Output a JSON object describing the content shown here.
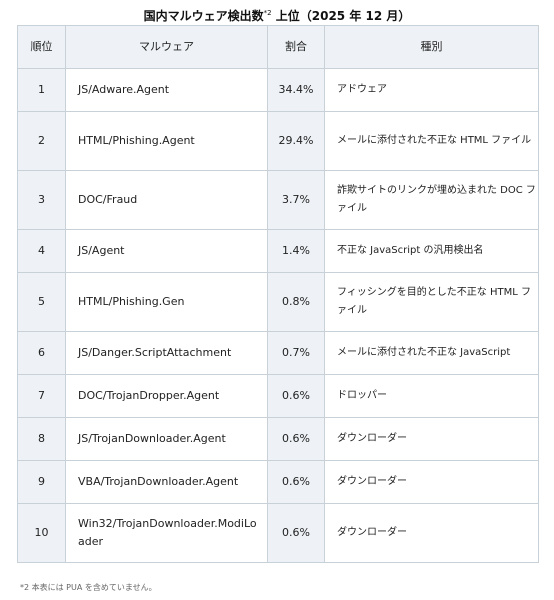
{
  "title": {
    "main": "国内マルウェア検出数",
    "sup": "*2",
    "suffix": " 上位（2025 年 12 月）"
  },
  "table": {
    "headers": [
      "順位",
      "マルウェア",
      "割合",
      "種別"
    ],
    "rows": [
      {
        "rank": "1",
        "name": "JS/Adware.Agent",
        "ratio": "34.4%",
        "type": "アドウェア"
      },
      {
        "rank": "2",
        "name": "HTML/Phishing.Agent",
        "ratio": "29.4%",
        "type": "メールに添付された不正な HTML ファイル"
      },
      {
        "rank": "3",
        "name": "DOC/Fraud",
        "ratio": "3.7%",
        "type": "詐欺サイトのリンクが埋め込まれた DOC ファイル"
      },
      {
        "rank": "4",
        "name": "JS/Agent",
        "ratio": "1.4%",
        "type": "不正な JavaScript の汎用検出名"
      },
      {
        "rank": "5",
        "name": "HTML/Phishing.Gen",
        "ratio": "0.8%",
        "type": "フィッシングを目的とした不正な HTML ファイル"
      },
      {
        "rank": "6",
        "name": "JS/Danger.ScriptAttachment",
        "ratio": "0.7%",
        "type": "メールに添付された不正な JavaScript"
      },
      {
        "rank": "7",
        "name": "DOC/TrojanDropper.Agent",
        "ratio": "0.6%",
        "type": "ドロッパー"
      },
      {
        "rank": "8",
        "name": "JS/TrojanDownloader.Agent",
        "ratio": "0.6%",
        "type": "ダウンローダー"
      },
      {
        "rank": "9",
        "name": "VBA/TrojanDownloader.Agent",
        "ratio": "0.6%",
        "type": "ダウンローダー"
      },
      {
        "rank": "10",
        "name": "Win32/TrojanDownloader.ModiLoader",
        "ratio": "0.6%",
        "type": "ダウンローダー"
      }
    ]
  },
  "footnote": "*2  本表には PUA を含めていません。"
}
